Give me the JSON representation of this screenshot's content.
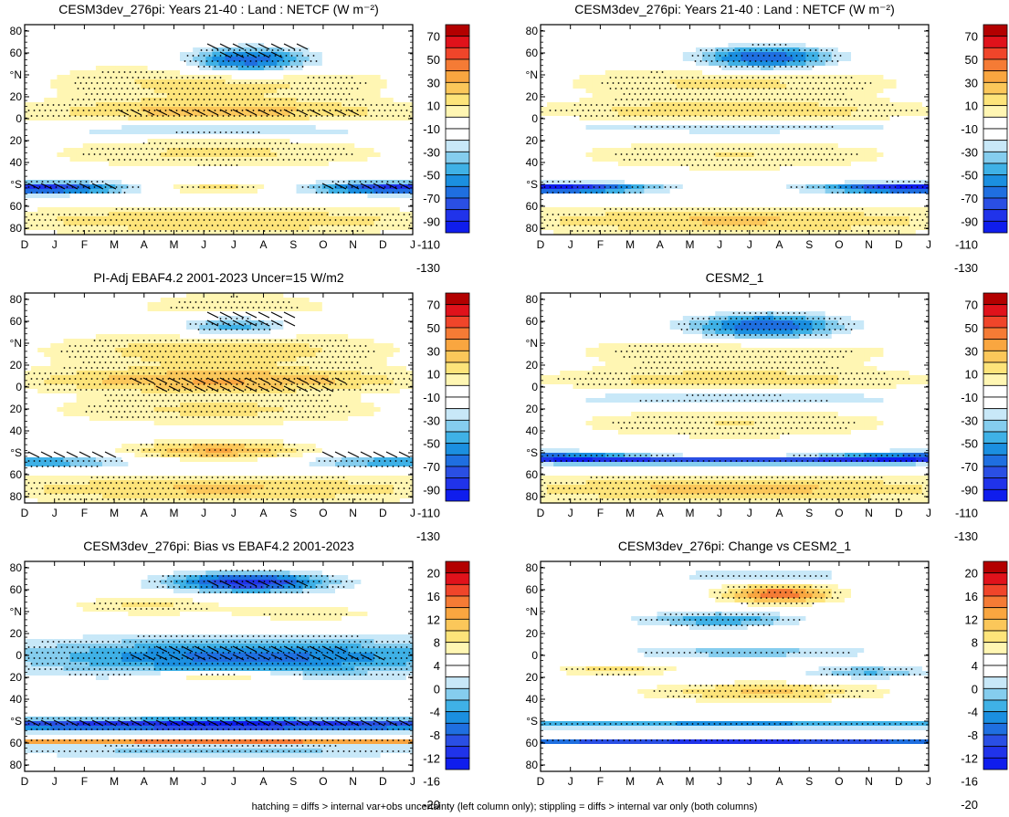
{
  "figure": {
    "footnote": "hatching = diffs > internal var+obs uncertainty (left column only); stippling = diffs > internal var only (both columns)"
  },
  "chart_data": [
    {
      "type": "heatmap",
      "title": "CESM3dev_276pi: Years 21-40 : Land : NETCF (W m⁻²)",
      "x_ticks": [
        "D",
        "J",
        "F",
        "M",
        "A",
        "M",
        "J",
        "J",
        "A",
        "S",
        "O",
        "N",
        "D",
        "J"
      ],
      "y_ticks": [
        "80",
        "60",
        "°N",
        "20",
        "0",
        "20",
        "40",
        "°S",
        "60",
        "80"
      ],
      "colorbar": {
        "labels": [
          "70",
          "50",
          "30",
          "10",
          "-10",
          "-30",
          "-50",
          "-70",
          "-90",
          "-110",
          "-130"
        ],
        "colors": [
          "#b30000",
          "#e0121b",
          "#f0452a",
          "#f57b35",
          "#f9a640",
          "#fbc75a",
          "#fde47a",
          "#fff6b3",
          "#ffffff",
          "#ffffff",
          "#c8e8f8",
          "#85cdee",
          "#3fb1e6",
          "#1b8fe0",
          "#1f6fe0",
          "#2a4fe4",
          "#2033ea",
          "#0f1ded"
        ]
      },
      "fields": [
        {
          "lat": 75,
          "month": 6.5,
          "amp": 0.3,
          "wlat": 20,
          "wm": 4
        },
        {
          "lat": 60,
          "month": 7,
          "amp": -1.6,
          "wlat": 12,
          "wm": 2.2
        },
        {
          "lat": 40,
          "month": 6,
          "amp": 0.55,
          "wlat": 18,
          "wm": 6
        },
        {
          "lat": 15,
          "month": 6,
          "amp": 0.7,
          "wlat": 10,
          "wm": 7
        },
        {
          "lat": 0,
          "month": 6,
          "amp": -0.5,
          "wlat": 6,
          "wm": 7
        },
        {
          "lat": -20,
          "month": 6,
          "amp": 0.5,
          "wlat": 14,
          "wm": 6
        },
        {
          "lat": -50,
          "month": 0,
          "amp": -1.7,
          "wlat": 5,
          "wm": 3.2
        },
        {
          "lat": -50,
          "month": 12,
          "amp": -1.7,
          "wlat": 5,
          "wm": 3.2
        },
        {
          "lat": -50,
          "month": 6,
          "amp": 0.6,
          "wlat": 5,
          "wm": 3
        },
        {
          "lat": -78,
          "month": 6,
          "amp": 0.65,
          "wlat": 12,
          "wm": 9
        }
      ],
      "hatch": [
        {
          "lat": 15,
          "month": 6.5,
          "amp": 1,
          "wlat": 7,
          "wm": 4.5
        },
        {
          "lat": -50,
          "month": 0.5,
          "amp": 1,
          "wlat": 5,
          "wm": 2.5
        },
        {
          "lat": -50,
          "month": 11.5,
          "amp": 1,
          "wlat": 5,
          "wm": 2.5
        },
        {
          "lat": 70,
          "month": 7,
          "amp": 1,
          "wlat": 8,
          "wm": 2
        }
      ],
      "stipple": true
    },
    {
      "type": "heatmap",
      "title": "CESM3dev_276pi: Years 21-40 : Land : NETCF (W m⁻²)",
      "x_ticks": [
        "D",
        "J",
        "F",
        "M",
        "A",
        "M",
        "J",
        "J",
        "A",
        "S",
        "O",
        "N",
        "D",
        "J"
      ],
      "y_ticks": [
        "80",
        "60",
        "°N",
        "20",
        "0",
        "20",
        "40",
        "°S",
        "60",
        "80"
      ],
      "colorbar": {
        "labels": [
          "70",
          "50",
          "30",
          "10",
          "-10",
          "-30",
          "-50",
          "-70",
          "-90",
          "-110",
          "-130"
        ],
        "colors": [
          "#b30000",
          "#e0121b",
          "#f0452a",
          "#f57b35",
          "#f9a640",
          "#fbc75a",
          "#fde47a",
          "#fff6b3",
          "#ffffff",
          "#ffffff",
          "#c8e8f8",
          "#85cdee",
          "#3fb1e6",
          "#1b8fe0",
          "#1f6fe0",
          "#2a4fe4",
          "#2033ea",
          "#0f1ded"
        ]
      },
      "fields": [
        {
          "lat": 75,
          "month": 6.5,
          "amp": 0.3,
          "wlat": 20,
          "wm": 4
        },
        {
          "lat": 62,
          "month": 7,
          "amp": -1.6,
          "wlat": 11,
          "wm": 2.4
        },
        {
          "lat": 40,
          "month": 6,
          "amp": 0.5,
          "wlat": 16,
          "wm": 6
        },
        {
          "lat": 15,
          "month": 6,
          "amp": 0.6,
          "wlat": 10,
          "wm": 7
        },
        {
          "lat": 2,
          "month": 6,
          "amp": -0.5,
          "wlat": 6,
          "wm": 7
        },
        {
          "lat": -22,
          "month": 6,
          "amp": 0.45,
          "wlat": 14,
          "wm": 6
        },
        {
          "lat": -50,
          "month": 0,
          "amp": -2.0,
          "wlat": 4,
          "wm": 3.0
        },
        {
          "lat": -50,
          "month": 12,
          "amp": -2.0,
          "wlat": 4,
          "wm": 3.0
        },
        {
          "lat": -78,
          "month": 6,
          "amp": 0.7,
          "wlat": 12,
          "wm": 9
        }
      ],
      "hatch": [],
      "stipple": true
    },
    {
      "type": "heatmap",
      "title": "PI-Adj EBAF4.2 2001-2023 Uncer=15 W/m2",
      "x_ticks": [
        "D",
        "J",
        "F",
        "M",
        "A",
        "M",
        "J",
        "J",
        "A",
        "S",
        "O",
        "N",
        "D",
        "J"
      ],
      "y_ticks": [
        "80",
        "60",
        "°N",
        "20",
        "0",
        "20",
        "40",
        "°S",
        "60",
        "80"
      ],
      "colorbar": {
        "labels": [
          "70",
          "50",
          "30",
          "10",
          "-10",
          "-30",
          "-50",
          "-70",
          "-90",
          "-110",
          "-130"
        ],
        "colors": [
          "#b30000",
          "#e0121b",
          "#f0452a",
          "#f57b35",
          "#f9a640",
          "#fbc75a",
          "#fde47a",
          "#fff6b3",
          "#ffffff",
          "#ffffff",
          "#c8e8f8",
          "#85cdee",
          "#3fb1e6",
          "#1b8fe0",
          "#1f6fe0",
          "#2a4fe4",
          "#2033ea",
          "#0f1ded"
        ]
      },
      "fields": [
        {
          "lat": 75,
          "month": 6.5,
          "amp": 0.4,
          "wlat": 20,
          "wm": 4
        },
        {
          "lat": 62,
          "month": 6.5,
          "amp": -1.1,
          "wlat": 9,
          "wm": 2.0
        },
        {
          "lat": 40,
          "month": 6,
          "amp": 0.6,
          "wlat": 16,
          "wm": 6
        },
        {
          "lat": 15,
          "month": 6,
          "amp": 0.85,
          "wlat": 10,
          "wm": 7
        },
        {
          "lat": -10,
          "month": 6,
          "amp": 0.5,
          "wlat": 14,
          "wm": 6
        },
        {
          "lat": -45,
          "month": 6,
          "amp": 0.9,
          "wlat": 8,
          "wm": 3
        },
        {
          "lat": -55,
          "month": 0,
          "amp": -0.9,
          "wlat": 5,
          "wm": 3.0
        },
        {
          "lat": -55,
          "month": 12,
          "amp": -0.9,
          "wlat": 5,
          "wm": 3.0
        },
        {
          "lat": -78,
          "month": 6,
          "amp": 0.7,
          "wlat": 12,
          "wm": 9
        }
      ],
      "hatch": [
        {
          "lat": 12,
          "month": 6.5,
          "amp": 1,
          "wlat": 7,
          "wm": 4.5
        },
        {
          "lat": -50,
          "month": 0.5,
          "amp": 1,
          "wlat": 5,
          "wm": 2.5
        },
        {
          "lat": -50,
          "month": 11.5,
          "amp": 1,
          "wlat": 5,
          "wm": 2.5
        },
        {
          "lat": 68,
          "month": 7,
          "amp": 1,
          "wlat": 7,
          "wm": 2
        }
      ],
      "stipple": true
    },
    {
      "type": "heatmap",
      "title": "CESM2_1",
      "x_ticks": [
        "D",
        "J",
        "F",
        "M",
        "A",
        "M",
        "J",
        "J",
        "A",
        "S",
        "O",
        "N",
        "D",
        "J"
      ],
      "y_ticks": [
        "80",
        "60",
        "°N",
        "20",
        "0",
        "20",
        "40",
        "°S",
        "60",
        "80"
      ],
      "colorbar": {
        "labels": [
          "70",
          "50",
          "30",
          "10",
          "-10",
          "-30",
          "-50",
          "-70",
          "-90",
          "-110",
          "-130"
        ],
        "colors": [
          "#b30000",
          "#e0121b",
          "#f0452a",
          "#f57b35",
          "#f9a640",
          "#fbc75a",
          "#fde47a",
          "#fff6b3",
          "#ffffff",
          "#ffffff",
          "#c8e8f8",
          "#85cdee",
          "#3fb1e6",
          "#1b8fe0",
          "#1f6fe0",
          "#2a4fe4",
          "#2033ea",
          "#0f1ded"
        ]
      },
      "fields": [
        {
          "lat": 78,
          "month": 6.5,
          "amp": 0.3,
          "wlat": 15,
          "wm": 4
        },
        {
          "lat": 62,
          "month": 7,
          "amp": -1.5,
          "wlat": 12,
          "wm": 2.6
        },
        {
          "lat": 40,
          "month": 6,
          "amp": 0.45,
          "wlat": 16,
          "wm": 6
        },
        {
          "lat": 15,
          "month": 6,
          "amp": 0.55,
          "wlat": 10,
          "wm": 7
        },
        {
          "lat": 0,
          "month": 6,
          "amp": -0.5,
          "wlat": 6,
          "wm": 7
        },
        {
          "lat": -22,
          "month": 6,
          "amp": 0.45,
          "wlat": 14,
          "wm": 6
        },
        {
          "lat": -50,
          "month": 0,
          "amp": -1.2,
          "wlat": 4,
          "wm": 3.2
        },
        {
          "lat": -50,
          "month": 12,
          "amp": -1.2,
          "wlat": 4,
          "wm": 3.2
        },
        {
          "lat": -54,
          "month": 6,
          "amp": -1.7,
          "wlat": 2.5,
          "wm": 12
        },
        {
          "lat": -78,
          "month": 6,
          "amp": 0.75,
          "wlat": 12,
          "wm": 9
        }
      ],
      "hatch": [],
      "stipple": true
    },
    {
      "type": "heatmap",
      "title": "CESM3dev_276pi: Bias vs EBAF4.2 2001-2023",
      "x_ticks": [
        "D",
        "J",
        "F",
        "M",
        "A",
        "M",
        "J",
        "J",
        "A",
        "S",
        "O",
        "N",
        "D",
        "J"
      ],
      "y_ticks": [
        "80",
        "60",
        "°N",
        "20",
        "0",
        "20",
        "40",
        "°S",
        "60",
        "80"
      ],
      "colorbar": {
        "labels": [
          "20",
          "16",
          "12",
          "8",
          "4",
          "0",
          "-4",
          "-8",
          "-12",
          "-16",
          "-20"
        ],
        "colors": [
          "#b30000",
          "#e0121b",
          "#f0452a",
          "#f57b35",
          "#f9a640",
          "#fbc75a",
          "#fde47a",
          "#fff6b3",
          "#ffffff",
          "#ffffff",
          "#c8e8f8",
          "#85cdee",
          "#3fb1e6",
          "#1b8fe0",
          "#1f6fe0",
          "#2a4fe4",
          "#2033ea",
          "#0f1ded"
        ]
      },
      "fields": [
        {
          "lat": 72,
          "month": 7,
          "amp": -1.7,
          "wlat": 8,
          "wm": 2.6
        },
        {
          "lat": 52,
          "month": 3.5,
          "amp": 0.5,
          "wlat": 8,
          "wm": 2.5
        },
        {
          "lat": 45,
          "month": 9,
          "amp": 0.35,
          "wlat": 8,
          "wm": 3
        },
        {
          "lat": 8,
          "month": 7,
          "amp": -1.2,
          "wlat": 16,
          "wm": 8
        },
        {
          "lat": -8,
          "month": 6,
          "amp": 0.9,
          "wlat": 4,
          "wm": 2
        },
        {
          "lat": -50,
          "month": 6,
          "amp": -1.9,
          "wlat": 5,
          "wm": 12
        },
        {
          "lat": -64,
          "month": 6,
          "amp": 1.6,
          "wlat": 1.2,
          "wm": 12
        },
        {
          "lat": -72,
          "month": 6,
          "amp": -0.5,
          "wlat": 6,
          "wm": 10
        }
      ],
      "hatch": [
        {
          "lat": 10,
          "month": 7,
          "amp": 1,
          "wlat": 8,
          "wm": 5
        },
        {
          "lat": -50,
          "month": 6,
          "amp": 1,
          "wlat": 4,
          "wm": 12
        },
        {
          "lat": 70,
          "month": 7,
          "amp": 1,
          "wlat": 6,
          "wm": 2
        }
      ],
      "stipple": true
    },
    {
      "type": "heatmap",
      "title": "CESM3dev_276pi: Change vs CESM2_1",
      "x_ticks": [
        "D",
        "J",
        "F",
        "M",
        "A",
        "M",
        "J",
        "J",
        "A",
        "S",
        "O",
        "N",
        "D",
        "J"
      ],
      "y_ticks": [
        "80",
        "60",
        "°N",
        "20",
        "0",
        "20",
        "40",
        "°S",
        "60",
        "80"
      ],
      "colorbar": {
        "labels": [
          "20",
          "16",
          "12",
          "8",
          "4",
          "0",
          "-4",
          "-8",
          "-12",
          "-16",
          "-20"
        ],
        "colors": [
          "#b30000",
          "#e0121b",
          "#f0452a",
          "#f57b35",
          "#f9a640",
          "#fbc75a",
          "#fde47a",
          "#fff6b3",
          "#ffffff",
          "#ffffff",
          "#c8e8f8",
          "#85cdee",
          "#3fb1e6",
          "#1b8fe0",
          "#1f6fe0",
          "#2a4fe4",
          "#2033ea",
          "#0f1ded"
        ]
      },
      "fields": [
        {
          "lat": 62,
          "month": 7.5,
          "amp": 1.3,
          "wlat": 8,
          "wm": 1.8
        },
        {
          "lat": 78,
          "month": 7,
          "amp": -0.5,
          "wlat": 5,
          "wm": 3
        },
        {
          "lat": 40,
          "month": 5.5,
          "amp": -0.9,
          "wlat": 6,
          "wm": 2.5
        },
        {
          "lat": 12,
          "month": 6.5,
          "amp": -0.6,
          "wlat": 5,
          "wm": 4
        },
        {
          "lat": -3,
          "month": 2,
          "amp": 0.6,
          "wlat": 5,
          "wm": 2
        },
        {
          "lat": -5,
          "month": 10.5,
          "amp": -0.7,
          "wlat": 5,
          "wm": 2
        },
        {
          "lat": -22,
          "month": 7,
          "amp": 0.7,
          "wlat": 8,
          "wm": 4
        },
        {
          "lat": -50,
          "month": 6,
          "amp": -1.1,
          "wlat": 2.5,
          "wm": 12
        },
        {
          "lat": -64,
          "month": 6,
          "amp": -2.0,
          "wlat": 1.2,
          "wm": 12
        }
      ],
      "hatch": [],
      "stipple": true
    }
  ]
}
